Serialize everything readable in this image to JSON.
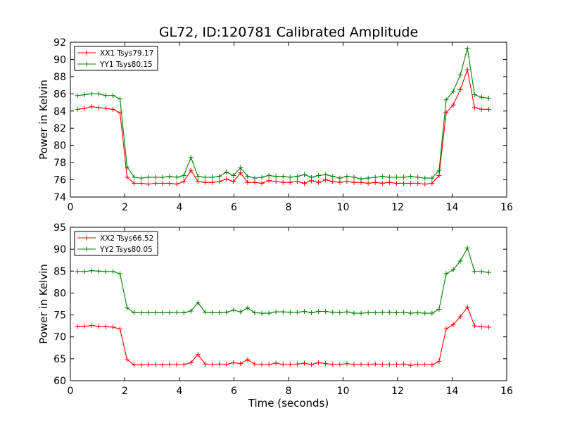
{
  "chart_data": [
    {
      "type": "line",
      "title": "GL72, ID:120781 Calibrated Amplitude",
      "xlabel": "",
      "ylabel": "Power in Kelvin",
      "xlim": [
        0,
        16
      ],
      "ylim": [
        74,
        92
      ],
      "xticks": [
        0,
        2,
        4,
        6,
        8,
        10,
        12,
        14,
        16
      ],
      "yticks": [
        74,
        76,
        78,
        80,
        82,
        84,
        86,
        88,
        90,
        92
      ],
      "grid": false,
      "legend_position": "top-left",
      "x": [
        0.26,
        0.52,
        0.78,
        1.04,
        1.3,
        1.56,
        1.82,
        2.08,
        2.34,
        2.6,
        2.86,
        3.12,
        3.38,
        3.64,
        3.9,
        4.16,
        4.42,
        4.68,
        4.94,
        5.2,
        5.46,
        5.72,
        5.98,
        6.24,
        6.5,
        6.76,
        7.02,
        7.28,
        7.54,
        7.8,
        8.06,
        8.32,
        8.58,
        8.84,
        9.1,
        9.36,
        9.62,
        9.88,
        10.14,
        10.4,
        10.66,
        10.92,
        11.18,
        11.44,
        11.7,
        11.96,
        12.22,
        12.48,
        12.74,
        13.0,
        13.26,
        13.52,
        13.78,
        14.04,
        14.3,
        14.56,
        14.82,
        15.08,
        15.34
      ],
      "series": [
        {
          "name": "XX1 Tsys79.17",
          "color": "#ff0000",
          "values": [
            84.2,
            84.3,
            84.5,
            84.4,
            84.3,
            84.2,
            83.8,
            76.3,
            75.6,
            75.6,
            75.5,
            75.6,
            75.6,
            75.6,
            75.5,
            75.8,
            77.1,
            75.8,
            75.7,
            75.7,
            75.8,
            76.1,
            75.8,
            76.8,
            75.7,
            75.7,
            75.6,
            75.9,
            75.8,
            75.7,
            75.7,
            75.8,
            75.6,
            75.9,
            75.7,
            76.0,
            75.8,
            75.7,
            75.8,
            75.7,
            75.7,
            75.6,
            75.7,
            75.6,
            75.7,
            75.6,
            75.6,
            75.6,
            75.6,
            75.5,
            75.6,
            76.5,
            83.8,
            84.7,
            86.5,
            88.8,
            84.4,
            84.2,
            84.2
          ]
        },
        {
          "name": "YY1 Tsys80.15",
          "color": "#008000",
          "values": [
            85.8,
            85.9,
            86.0,
            86.0,
            85.8,
            85.8,
            85.4,
            77.5,
            76.3,
            76.2,
            76.3,
            76.3,
            76.3,
            76.4,
            76.3,
            76.5,
            78.6,
            76.4,
            76.3,
            76.3,
            76.4,
            76.9,
            76.5,
            77.4,
            76.4,
            76.2,
            76.3,
            76.5,
            76.4,
            76.4,
            76.3,
            76.4,
            76.6,
            76.3,
            76.5,
            76.6,
            76.4,
            76.2,
            76.4,
            76.3,
            76.1,
            76.2,
            76.3,
            76.4,
            76.3,
            76.3,
            76.3,
            76.4,
            76.3,
            76.2,
            76.2,
            77.1,
            85.3,
            86.3,
            88.2,
            91.3,
            85.9,
            85.6,
            85.5
          ]
        }
      ]
    },
    {
      "type": "line",
      "title": "",
      "xlabel": "Time (seconds)",
      "ylabel": "Power in Kelvin",
      "xlim": [
        0,
        16
      ],
      "ylim": [
        60,
        95
      ],
      "xticks": [
        0,
        2,
        4,
        6,
        8,
        10,
        12,
        14,
        16
      ],
      "yticks": [
        60,
        65,
        70,
        75,
        80,
        85,
        90,
        95
      ],
      "grid": false,
      "legend_position": "top-left",
      "x": [
        0.26,
        0.52,
        0.78,
        1.04,
        1.3,
        1.56,
        1.82,
        2.08,
        2.34,
        2.6,
        2.86,
        3.12,
        3.38,
        3.64,
        3.9,
        4.16,
        4.42,
        4.68,
        4.94,
        5.2,
        5.46,
        5.72,
        5.98,
        6.24,
        6.5,
        6.76,
        7.02,
        7.28,
        7.54,
        7.8,
        8.06,
        8.32,
        8.58,
        8.84,
        9.1,
        9.36,
        9.62,
        9.88,
        10.14,
        10.4,
        10.66,
        10.92,
        11.18,
        11.44,
        11.7,
        11.96,
        12.22,
        12.48,
        12.74,
        13.0,
        13.26,
        13.52,
        13.78,
        14.04,
        14.3,
        14.56,
        14.82,
        15.08,
        15.34
      ],
      "series": [
        {
          "name": "XX2 Tsys66.52",
          "color": "#ff0000",
          "values": [
            72.3,
            72.4,
            72.6,
            72.4,
            72.3,
            72.2,
            71.8,
            64.8,
            63.6,
            63.6,
            63.7,
            63.7,
            63.6,
            63.7,
            63.7,
            63.7,
            64.1,
            66.0,
            63.8,
            63.7,
            63.8,
            63.7,
            64.1,
            63.9,
            64.8,
            63.8,
            63.7,
            63.7,
            64.0,
            63.7,
            63.7,
            63.8,
            64.0,
            63.7,
            64.1,
            63.9,
            63.7,
            63.7,
            63.9,
            63.7,
            63.7,
            63.7,
            63.8,
            63.7,
            63.7,
            63.7,
            63.8,
            63.5,
            63.7,
            63.7,
            63.6,
            64.4,
            71.8,
            72.8,
            74.6,
            76.8,
            72.5,
            72.3,
            72.2
          ]
        },
        {
          "name": "YY2 Tsys80.05",
          "color": "#008000",
          "values": [
            84.9,
            84.9,
            85.1,
            85.0,
            84.9,
            84.9,
            84.4,
            76.6,
            75.5,
            75.5,
            75.5,
            75.5,
            75.5,
            75.5,
            75.6,
            75.5,
            75.9,
            77.8,
            75.6,
            75.5,
            75.5,
            75.6,
            76.1,
            75.7,
            76.6,
            75.5,
            75.4,
            75.4,
            75.7,
            75.7,
            75.6,
            75.6,
            75.8,
            75.5,
            75.8,
            75.8,
            75.6,
            75.5,
            75.7,
            75.4,
            75.4,
            75.5,
            75.5,
            75.6,
            75.6,
            75.5,
            75.6,
            75.4,
            75.5,
            75.4,
            75.4,
            76.3,
            84.4,
            85.3,
            87.3,
            90.3,
            84.9,
            84.9,
            84.7
          ]
        }
      ]
    }
  ]
}
